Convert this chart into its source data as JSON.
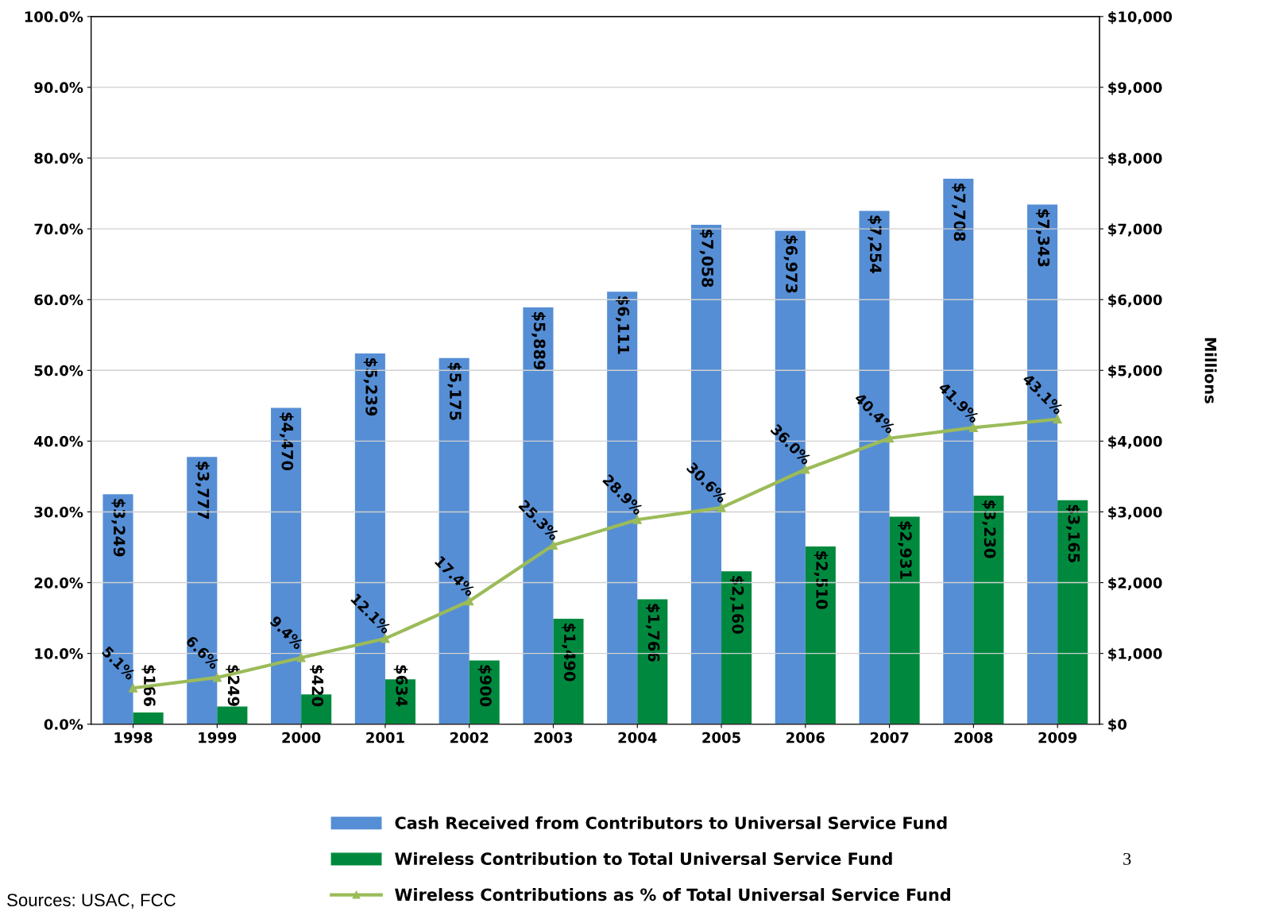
{
  "chart_data": {
    "type": "bar",
    "categories": [
      "1998",
      "1999",
      "2000",
      "2001",
      "2002",
      "2003",
      "2004",
      "2005",
      "2006",
      "2007",
      "2008",
      "2009"
    ],
    "series": [
      {
        "name": "Cash Received from Contributors to Universal Service Fund",
        "axis": "y2",
        "color": "#558ed5",
        "values": [
          3249,
          3777,
          4470,
          5239,
          5175,
          5889,
          6111,
          7058,
          6973,
          7254,
          7708,
          7343
        ],
        "value_labels": [
          "$3,249",
          "$3,777",
          "$4,470",
          "$5,239",
          "$5,175",
          "$5,889",
          "$6,111",
          "$7,058",
          "$6,973",
          "$7,254",
          "$7,708",
          "$7,343"
        ]
      },
      {
        "name": "Wireless Contribution to Total Universal Service Fund",
        "axis": "y2",
        "color": "#00893e",
        "values": [
          166,
          249,
          420,
          634,
          900,
          1490,
          1766,
          2160,
          2510,
          2931,
          3230,
          3165
        ],
        "value_labels": [
          "$166",
          "$249",
          "$420",
          "$634",
          "$900",
          "$1,490",
          "$1,766",
          "$2,160",
          "$2,510",
          "$2,931",
          "$3,230",
          "$3,165"
        ]
      },
      {
        "name": "Wireless Contributions as % of Total Universal Service Fund",
        "type": "line",
        "axis": "y",
        "color": "#9bbb59",
        "marker": "triangle",
        "values": [
          5.1,
          6.6,
          9.4,
          12.1,
          17.4,
          25.3,
          28.9,
          30.6,
          36.0,
          40.4,
          41.9,
          43.1
        ],
        "value_labels": [
          "5.1%",
          "6.6%",
          "9.4%",
          "12.1%",
          "17.4%",
          "25.3%",
          "28.9%",
          "30.6%",
          "36.0%",
          "40.4%",
          "41.9%",
          "43.1%"
        ]
      }
    ],
    "ylim": [
      0,
      100
    ],
    "yticks": [
      {
        "value": 0,
        "label": "0.0%"
      },
      {
        "value": 10,
        "label": "10.0%"
      },
      {
        "value": 20,
        "label": "20.0%"
      },
      {
        "value": 30,
        "label": "30.0%"
      },
      {
        "value": 40,
        "label": "40.0%"
      },
      {
        "value": 50,
        "label": "50.0%"
      },
      {
        "value": 60,
        "label": "60.0%"
      },
      {
        "value": 70,
        "label": "70.0%"
      },
      {
        "value": 80,
        "label": "80.0%"
      },
      {
        "value": 90,
        "label": "90.0%"
      },
      {
        "value": 100,
        "label": "100.0%"
      }
    ],
    "y2lim": [
      0,
      10000
    ],
    "y2ticks": [
      {
        "value": 0,
        "label": "$0"
      },
      {
        "value": 1000,
        "label": "$1,000"
      },
      {
        "value": 2000,
        "label": "$2,000"
      },
      {
        "value": 3000,
        "label": "$3,000"
      },
      {
        "value": 4000,
        "label": "$4,000"
      },
      {
        "value": 5000,
        "label": "$5,000"
      },
      {
        "value": 6000,
        "label": "$6,000"
      },
      {
        "value": 7000,
        "label": "$7,000"
      },
      {
        "value": 8000,
        "label": "$8,000"
      },
      {
        "value": 9000,
        "label": "$9,000"
      },
      {
        "value": 10000,
        "label": "$10,000"
      }
    ],
    "y2label": "Millions",
    "grid": "y",
    "legend": "bottom",
    "annotations": [
      "Sources: USAC, FCC",
      "3"
    ]
  }
}
